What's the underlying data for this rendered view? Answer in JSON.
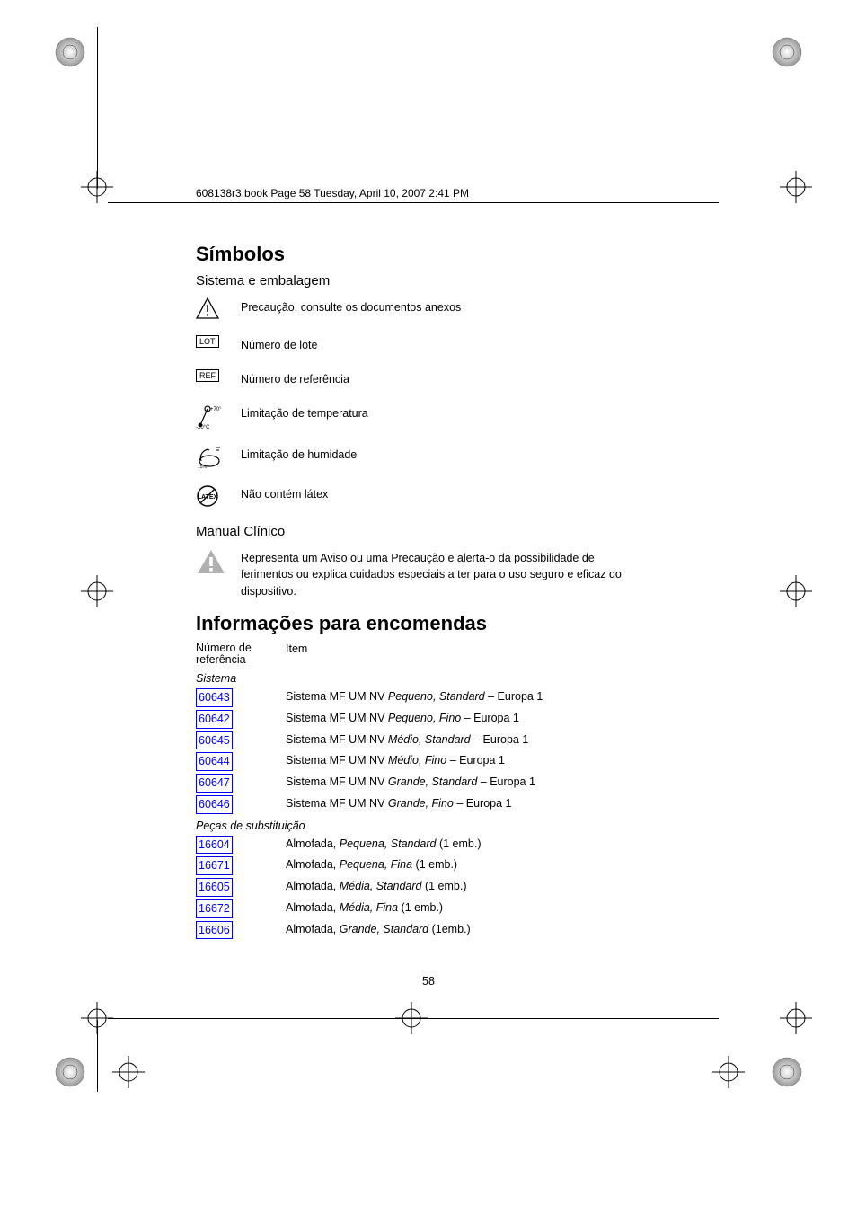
{
  "header": {
    "text": "608138r3.book  Page 58  Tuesday, April 10, 2007  2:41 PM"
  },
  "sections": {
    "symbols": {
      "title": "Símbolos",
      "subtitle1": "Sistema e embalagem",
      "items": [
        {
          "icon": "triangle-exclamation",
          "text": "Precaução, consulte os documentos anexos"
        },
        {
          "icon": "lot",
          "text": "Número de lote"
        },
        {
          "icon": "ref",
          "text": "Número de referência"
        },
        {
          "icon": "thermometer",
          "text": "Limitação de temperatura"
        },
        {
          "icon": "humidity",
          "text": "Limitação de humidade"
        },
        {
          "icon": "latex-free",
          "text": "Não contém látex"
        }
      ],
      "subtitle2": "Manual Clínico",
      "manual_warning": "Representa um Aviso ou uma Precaução e alerta-o da possibilidade de ferimentos ou explica cuidados especiais a ter para o uso seguro e eficaz do dispositivo."
    },
    "ordering": {
      "title": "Informações para encomendas",
      "header_ref": "Número de referência",
      "header_item": "Item",
      "groups": [
        {
          "label": "Sistema",
          "rows": [
            {
              "ref": "60643",
              "prefix": "Sistema MF UM NV ",
              "italic": "Pequeno, Standard",
              "suffix": " – Europa 1"
            },
            {
              "ref": "60642",
              "prefix": "Sistema MF UM NV ",
              "italic": "Pequeno, Fino ",
              "suffix": " – Europa 1"
            },
            {
              "ref": "60645",
              "prefix": "Sistema MF UM NV ",
              "italic": "Médio, Standard ",
              "suffix": " – Europa 1"
            },
            {
              "ref": "60644",
              "prefix": "Sistema MF UM NV ",
              "italic": "Médio, Fino ",
              "suffix": " – Europa 1"
            },
            {
              "ref": "60647",
              "prefix": "Sistema MF UM NV ",
              "italic": "Grande, Standard ",
              "suffix": " – Europa 1"
            },
            {
              "ref": "60646",
              "prefix": "Sistema MF UM NV ",
              "italic": "Grande, Fino ",
              "suffix": " – Europa 1"
            }
          ]
        },
        {
          "label": "Peças de substituição",
          "rows": [
            {
              "ref": "16604",
              "prefix": "Almofada, ",
              "italic": "Pequena, Standard",
              "suffix": " (1 emb.)"
            },
            {
              "ref": "16671",
              "prefix": "Almofada, ",
              "italic": "Pequena, Fina",
              "suffix": " (1 emb.)"
            },
            {
              "ref": "16605",
              "prefix": "Almofada, ",
              "italic": "Média, Standard",
              "suffix": " (1 emb.)"
            },
            {
              "ref": "16672",
              "prefix": "Almofada, ",
              "italic": "Média, Fina",
              "suffix": " (1 emb.)"
            },
            {
              "ref": "16606",
              "prefix": "Almofada, ",
              "italic": "Grande, Standard",
              "suffix": " (1emb.)"
            }
          ]
        }
      ]
    }
  },
  "page_number": "58",
  "colors": {
    "link": "#0000ee",
    "text": "#000000",
    "warning_gray": "#b0b0b0"
  }
}
